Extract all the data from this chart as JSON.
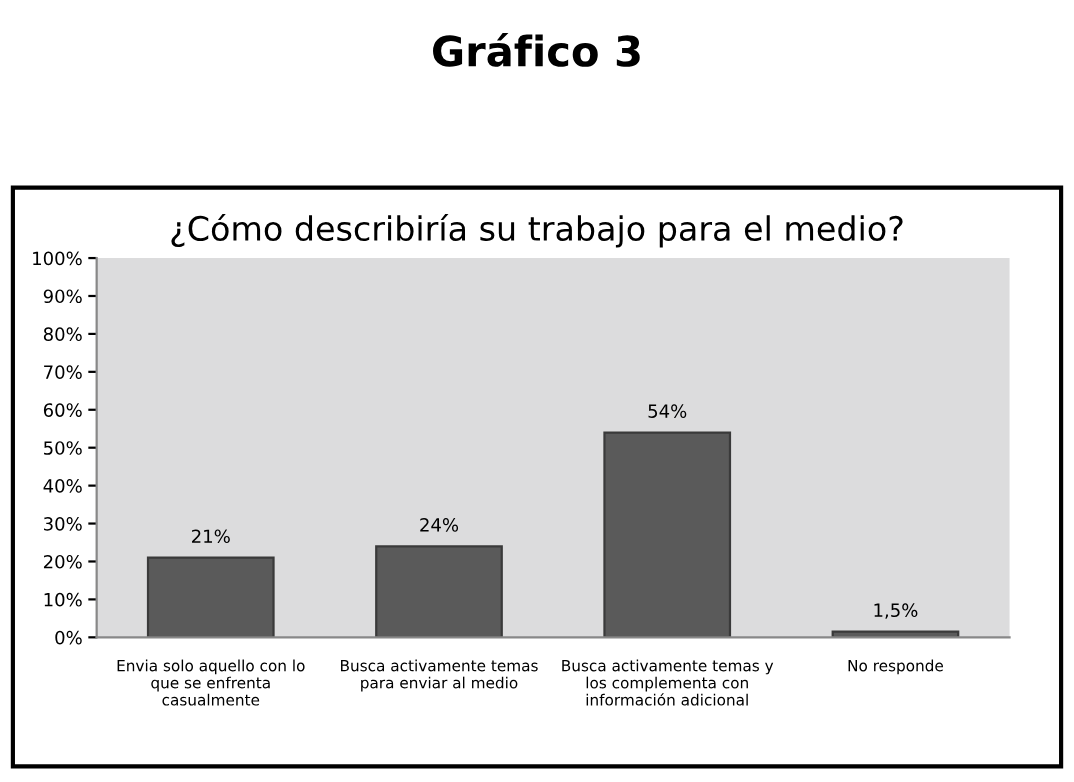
{
  "chart_data": {
    "type": "bar",
    "title": "Gráfico 3",
    "subtitle": "¿Cómo describiría su trabajo para el medio?",
    "categories": [
      "Envia solo aquello con lo\nque se enfrenta\ncasualmente",
      "Busca activamente temas\npara enviar al medio",
      "Busca activamente temas y\nlos complementa con\ninformación adicional",
      "No responde"
    ],
    "values": [
      21,
      24,
      54,
      1.5
    ],
    "value_labels": [
      "21%",
      "24%",
      "54%",
      "1,5%"
    ],
    "color": "#5a5a5a",
    "ylim": [
      0,
      100
    ],
    "yticks": [
      {
        "value": 0,
        "label": "0%"
      },
      {
        "value": 10,
        "label": "10%"
      },
      {
        "value": 20,
        "label": "20%"
      },
      {
        "value": 30,
        "label": "30%"
      },
      {
        "value": 40,
        "label": "40%"
      },
      {
        "value": 50,
        "label": "50%"
      },
      {
        "value": 60,
        "label": "60%"
      },
      {
        "value": 70,
        "label": "70%"
      },
      {
        "value": 80,
        "label": "80%"
      },
      {
        "value": 90,
        "label": "90%"
      },
      {
        "value": 100,
        "label": "100%"
      }
    ],
    "grid": false,
    "legend": false
  }
}
